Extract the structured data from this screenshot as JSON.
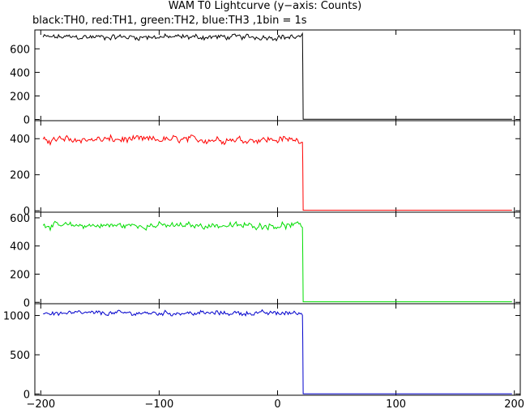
{
  "chart_data": {
    "type": "line",
    "title": "WAM T0 Lightcurve (y−axis: Counts)",
    "subtitle": "black:TH0, red:TH1, green:TH2, blue:TH3 ,1bin = 1s",
    "xlim": [
      -205,
      205
    ],
    "x_ticks": [
      -200,
      -100,
      0,
      100,
      200
    ],
    "step_time": 21,
    "panels": [
      {
        "name": "TH0",
        "color": "#000000",
        "ylim": [
          -10,
          760
        ],
        "y_ticks": [
          0,
          200,
          400,
          600
        ],
        "mean_before": 700,
        "noise": 28,
        "peak": 730,
        "low": 650,
        "drop_value": 480,
        "after": 2
      },
      {
        "name": "TH1",
        "color": "#ff0000",
        "ylim": [
          -8,
          500
        ],
        "y_ticks": [
          0,
          200,
          400
        ],
        "mean_before": 395,
        "noise": 24,
        "peak": 470,
        "low": 350,
        "drop_value": 270,
        "after": 3
      },
      {
        "name": "TH2",
        "color": "#00dd00",
        "ylim": [
          -10,
          640
        ],
        "y_ticks": [
          0,
          200,
          400,
          600
        ],
        "mean_before": 545,
        "noise": 26,
        "peak": 615,
        "low": 490,
        "drop_value": 345,
        "after": 4
      },
      {
        "name": "TH3",
        "color": "#0000cc",
        "ylim": [
          -15,
          1150
        ],
        "y_ticks": [
          0,
          500,
          1000
        ],
        "mean_before": 1030,
        "noise": 35,
        "peak": 1080,
        "low": 930,
        "drop_value": 700,
        "after": 4
      }
    ]
  }
}
